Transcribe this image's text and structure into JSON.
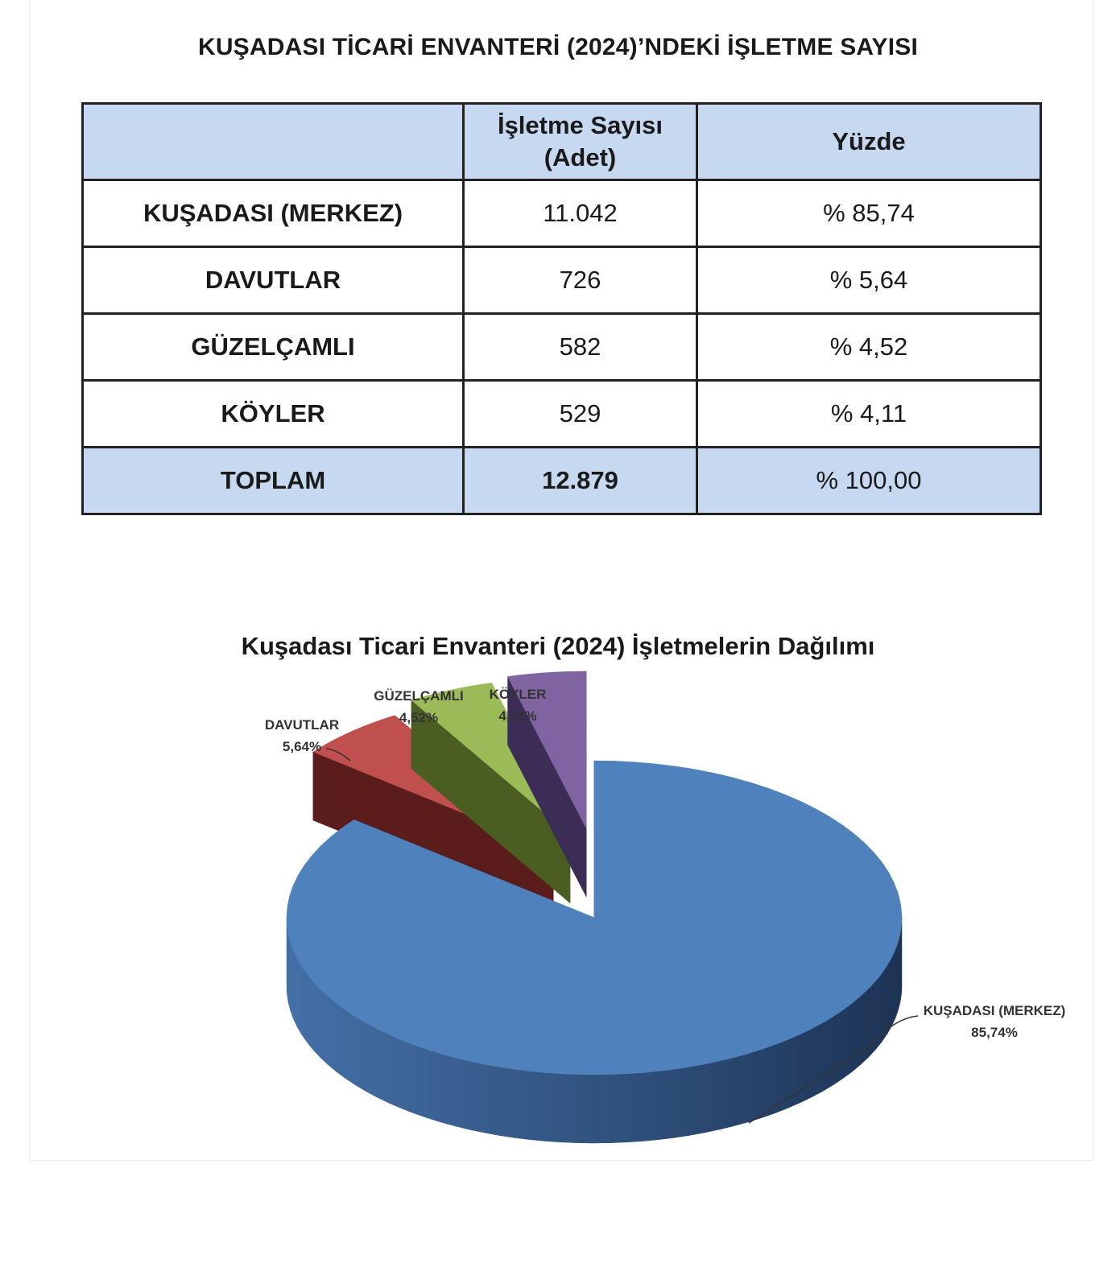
{
  "title": "KUŞADASI TİCARİ ENVANTERİ  (2024)’NDEKİ İŞLETME SAYISI",
  "table": {
    "headers": [
      "",
      "İşletme Sayısı",
      "(Adet)",
      "Yüzde"
    ],
    "rows": [
      {
        "name": "KUŞADASI (MERKEZ)",
        "count": "11.042",
        "percent": "% 85,74"
      },
      {
        "name": "DAVUTLAR",
        "count": "726",
        "percent": "% 5,64"
      },
      {
        "name": "GÜZELÇAMLI",
        "count": "582",
        "percent": "% 4,52"
      },
      {
        "name": "KÖYLER",
        "count": "529",
        "percent": "% 4,11"
      }
    ],
    "total": {
      "name": "TOPLAM",
      "count": "12.879",
      "percent": "% 100,00"
    },
    "header_bg": "#c6d9f1"
  },
  "chart_data": {
    "type": "pie",
    "style": "3d-exploded",
    "title": "Kuşadası Ticari Envanteri (2024)  İşletmelerin Dağılımı",
    "categories": [
      "KUŞADASI  (MERKEZ)",
      "DAVUTLAR",
      "GÜZELÇAMLI",
      "KÖYLER"
    ],
    "values": [
      85.74,
      5.64,
      4.52,
      4.11
    ],
    "data_labels": [
      "85,74%",
      "5,64%",
      "4,52%",
      "4,11%"
    ],
    "colors": [
      "#4f81bd",
      "#c0504d",
      "#9bbb59",
      "#8064a2"
    ],
    "side_colors": [
      "#2c4a73",
      "#5a1d1c",
      "#4a5e22",
      "#3b2d55"
    ],
    "exploded": [
      false,
      true,
      true,
      true
    ],
    "legend": "none"
  }
}
